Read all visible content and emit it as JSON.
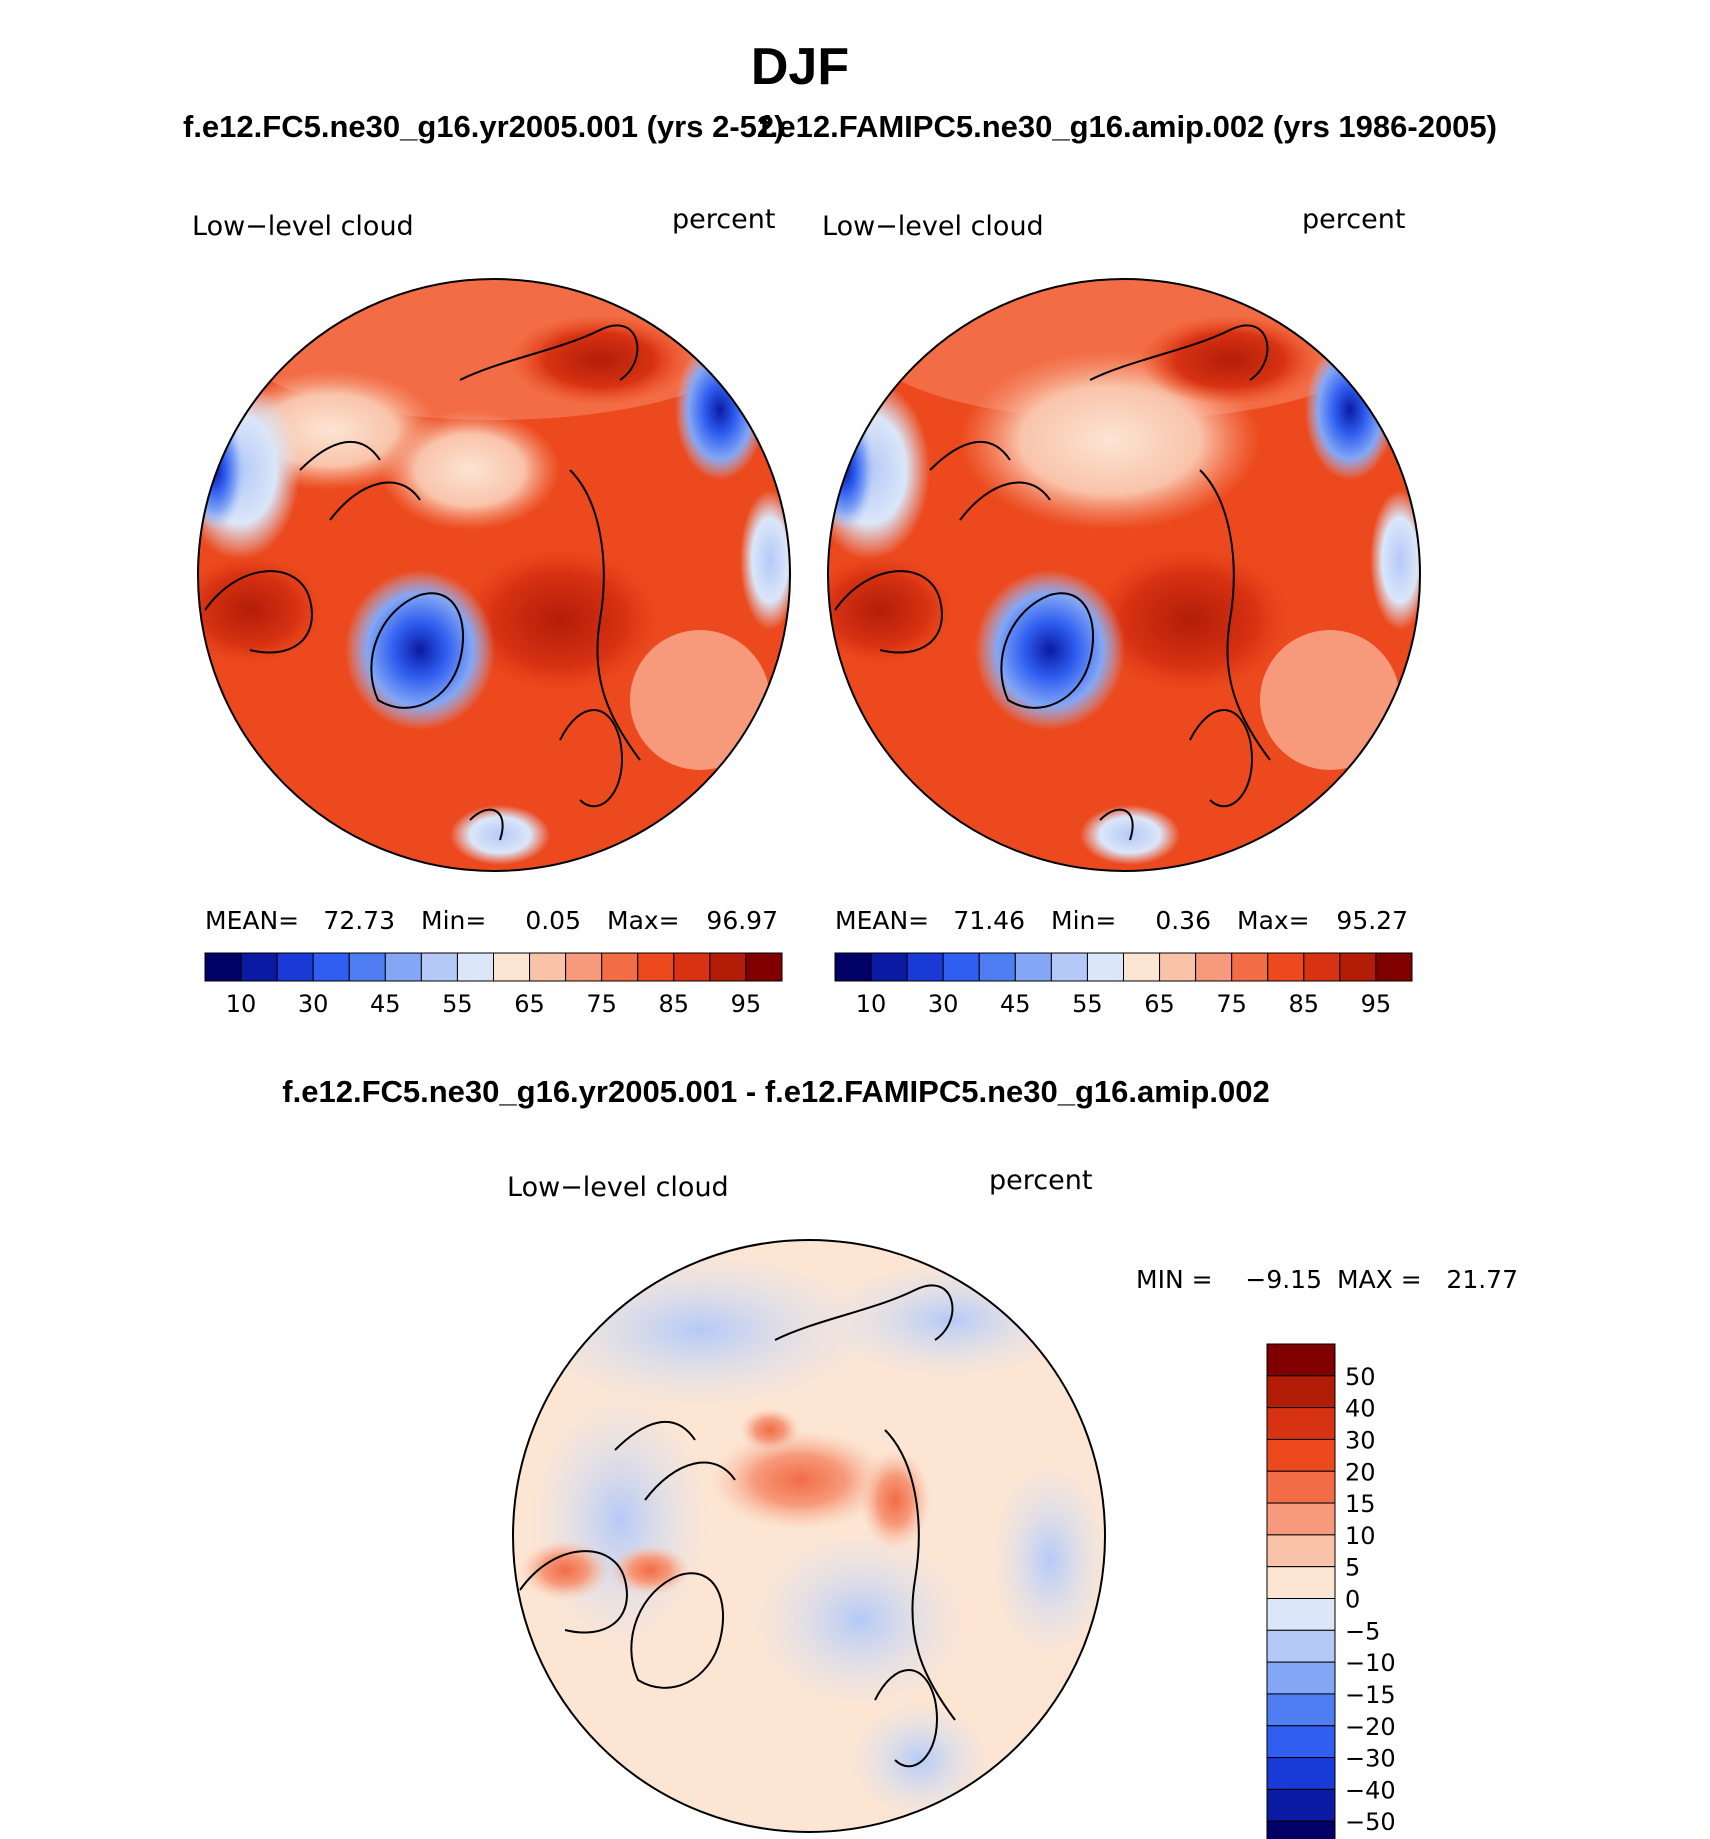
{
  "chart_data": {
    "type": "heatmap",
    "title": "DJF",
    "panels": [
      {
        "case_title": "f.e12.FC5.ne30_g16.yr2005.001 (yrs 2-52)",
        "variable_label": "Low−level cloud",
        "units": "percent",
        "stats": {
          "mean_label": "MEAN=",
          "mean": "72.73",
          "min_label": "Min=",
          "min": "0.05",
          "max_label": "Max=",
          "max": "96.97"
        },
        "colorbar_ticks": [
          "10",
          "30",
          "45",
          "55",
          "65",
          "75",
          "85",
          "95"
        ]
      },
      {
        "case_title": "f.e12.FAMIPC5.ne30_g16.amip.002 (yrs 1986-2005)",
        "variable_label": "Low−level cloud",
        "units": "percent",
        "stats": {
          "mean_label": "MEAN=",
          "mean": "71.46",
          "min_label": "Min=",
          "min": "0.36",
          "max_label": "Max=",
          "max": "95.27"
        },
        "colorbar_ticks": [
          "10",
          "30",
          "45",
          "55",
          "65",
          "75",
          "85",
          "95"
        ]
      },
      {
        "case_title": "f.e12.FC5.ne30_g16.yr2005.001 - f.e12.FAMIPC5.ne30_g16.amip.002",
        "variable_label": "Low−level cloud",
        "units": "percent",
        "stats": {
          "min_label": "MIN =",
          "min": "−9.15",
          "max_label": "MAX =",
          "max": "21.77"
        },
        "colorbar_ticks": [
          "50",
          "40",
          "30",
          "20",
          "15",
          "10",
          "5",
          "0",
          "−5",
          "−10",
          "−15",
          "−20",
          "−30",
          "−40",
          "−50"
        ]
      }
    ],
    "abs_palette": [
      "#000066",
      "#0a1aa3",
      "#1a3ad8",
      "#2f5ef0",
      "#4f7ef3",
      "#83a6f5",
      "#b4c9f7",
      "#dbe6f8",
      "#fce5d3",
      "#f9c3aa",
      "#f69a7b",
      "#f26c45",
      "#ec4a1e",
      "#d73212",
      "#b31d08",
      "#800000"
    ],
    "diff_palette": [
      "#800000",
      "#b31d08",
      "#d73212",
      "#ec4a1e",
      "#f26c45",
      "#f69a7b",
      "#f9c3aa",
      "#fce5d3",
      "#dbe6f8",
      "#b4c9f7",
      "#83a6f5",
      "#4f7ef3",
      "#2f5ef0",
      "#1a3ad8",
      "#0a1aa3",
      "#000066"
    ]
  }
}
